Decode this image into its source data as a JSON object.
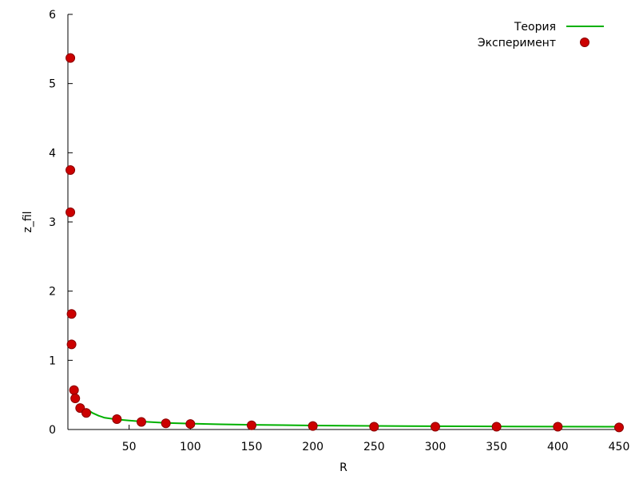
{
  "chart_data": {
    "type": "scatter",
    "xlabel": "R",
    "ylabel": "z_fil",
    "xlim": [
      0,
      450
    ],
    "ylim": [
      0,
      6
    ],
    "x_ticks": [
      50,
      100,
      150,
      200,
      250,
      300,
      350,
      400,
      450
    ],
    "y_ticks": [
      0,
      1,
      2,
      3,
      4,
      5,
      6
    ],
    "grid": false,
    "legend_position": "top-right",
    "series": [
      {
        "name": "Теория",
        "kind": "line",
        "color": "#00b000",
        "x": [
          15,
          20,
          25,
          30,
          40,
          50,
          60,
          70,
          80,
          100,
          125,
          150,
          175,
          200,
          250,
          300,
          350,
          400,
          450
        ],
        "y": [
          0.3,
          0.24,
          0.2,
          0.17,
          0.145,
          0.13,
          0.115,
          0.105,
          0.095,
          0.085,
          0.075,
          0.068,
          0.063,
          0.058,
          0.052,
          0.047,
          0.044,
          0.042,
          0.04
        ]
      },
      {
        "name": "Эксперимент",
        "kind": "points",
        "color": "#cc0000",
        "x": [
          2,
          2,
          2,
          3,
          3,
          5,
          6,
          10,
          15,
          40,
          60,
          80,
          100,
          150,
          200,
          250,
          300,
          350,
          400,
          450
        ],
        "y": [
          5.37,
          3.75,
          3.14,
          1.67,
          1.23,
          0.57,
          0.45,
          0.31,
          0.24,
          0.15,
          0.11,
          0.09,
          0.08,
          0.06,
          0.05,
          0.04,
          0.04,
          0.04,
          0.04,
          0.03
        ]
      }
    ]
  }
}
